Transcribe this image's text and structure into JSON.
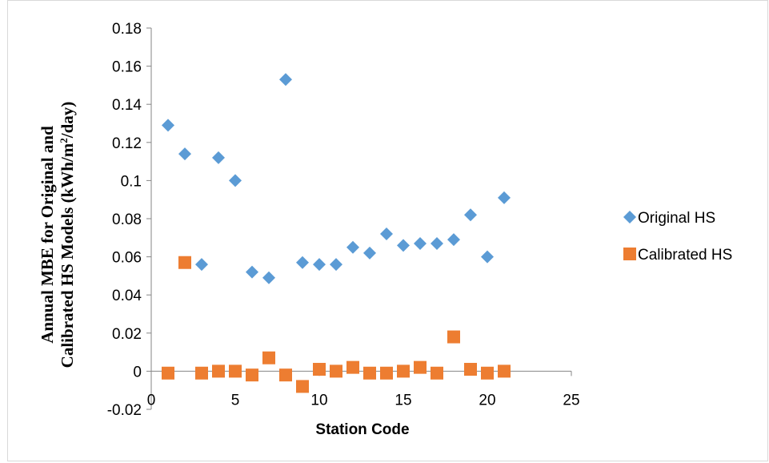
{
  "chart_data": {
    "type": "scatter",
    "xlabel": "Station Code",
    "ylabel_line1": "Annual MBE for Original and",
    "ylabel_line2_pre": "Calibrated HS Models (kWh/m",
    "ylabel_line2_sup": "2",
    "ylabel_line2_post": "/day)",
    "xlim": [
      0,
      25
    ],
    "ylim": [
      -0.02,
      0.18
    ],
    "x_ticks": [
      "0",
      "5",
      "10",
      "15",
      "20",
      "25"
    ],
    "y_ticks": [
      "-0.02",
      "0",
      "0.02",
      "0.04",
      "0.06",
      "0.08",
      "0.1",
      "0.12",
      "0.14",
      "0.16",
      "0.18"
    ],
    "grid": false,
    "legend_position": "right",
    "series": [
      {
        "name": "Original HS",
        "marker": "diamond",
        "color": "#5b9bd5",
        "x": [
          1,
          2,
          3,
          4,
          5,
          6,
          7,
          8,
          9,
          10,
          11,
          12,
          13,
          14,
          15,
          16,
          17,
          18,
          19,
          20,
          21
        ],
        "y": [
          0.129,
          0.114,
          0.056,
          0.112,
          0.1,
          0.052,
          0.049,
          0.153,
          0.057,
          0.056,
          0.056,
          0.065,
          0.062,
          0.072,
          0.066,
          0.067,
          0.067,
          0.069,
          0.082,
          0.06,
          0.091
        ]
      },
      {
        "name": "Calibrated HS",
        "marker": "square",
        "color": "#ed7d31",
        "x": [
          1,
          2,
          3,
          4,
          5,
          6,
          7,
          8,
          9,
          10,
          11,
          12,
          13,
          14,
          15,
          16,
          17,
          18,
          19,
          20,
          21
        ],
        "y": [
          -0.001,
          0.057,
          -0.001,
          0.0,
          0.0,
          -0.002,
          0.007,
          -0.002,
          -0.008,
          0.001,
          0.0,
          0.002,
          -0.001,
          -0.001,
          0.0,
          0.002,
          -0.001,
          0.018,
          0.001,
          -0.001,
          0.0
        ]
      }
    ]
  }
}
